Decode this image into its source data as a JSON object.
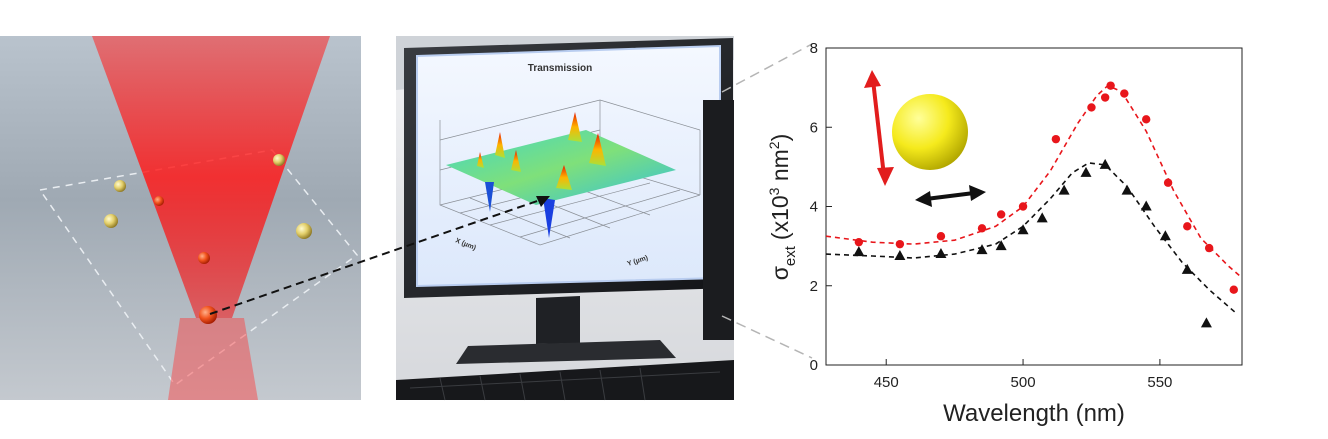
{
  "monitor": {
    "screen_title": "Transmission",
    "x_axis_label": "X (µm)",
    "y_axis_label": "Y (µm)"
  },
  "chart_data": {
    "type": "scatter",
    "title": "",
    "xlabel": "Wavelength (nm)",
    "ylabel": {
      "symbol": "σ",
      "subscript": "ext",
      "open": "(x10",
      "exp": "3",
      "unit": " nm",
      "unit_exp": "2",
      "close": ")"
    },
    "xlim": [
      428,
      580
    ],
    "ylim": [
      0,
      8
    ],
    "xticks": [
      "450",
      "500",
      "550"
    ],
    "yticks": [
      "0",
      "2",
      "4",
      "6",
      "8"
    ],
    "xtick_values": [
      450,
      500,
      550
    ],
    "ytick_values": [
      0,
      2,
      4,
      6,
      8
    ],
    "grid": false,
    "legend": "none",
    "series": [
      {
        "marker": "circle",
        "color": "#e8161b",
        "points": [
          [
            440,
            3.1
          ],
          [
            455,
            3.05
          ],
          [
            470,
            3.25
          ],
          [
            485,
            3.45
          ],
          [
            492,
            3.8
          ],
          [
            500,
            4.0
          ],
          [
            512,
            5.7
          ],
          [
            525,
            6.5
          ],
          [
            530,
            6.75
          ],
          [
            532,
            7.05
          ],
          [
            537,
            6.85
          ],
          [
            545,
            6.2
          ],
          [
            553,
            4.6
          ],
          [
            560,
            3.5
          ],
          [
            568,
            2.95
          ],
          [
            577,
            1.9
          ]
        ],
        "fit": [
          [
            428,
            3.25
          ],
          [
            445,
            3.1
          ],
          [
            460,
            3.05
          ],
          [
            475,
            3.15
          ],
          [
            490,
            3.5
          ],
          [
            500,
            4.0
          ],
          [
            510,
            4.9
          ],
          [
            520,
            6.1
          ],
          [
            527,
            6.8
          ],
          [
            531,
            7.05
          ],
          [
            536,
            6.9
          ],
          [
            545,
            5.9
          ],
          [
            555,
            4.4
          ],
          [
            565,
            3.2
          ],
          [
            575,
            2.5
          ],
          [
            580,
            2.2
          ]
        ]
      },
      {
        "marker": "triangle",
        "color": "#111111",
        "points": [
          [
            440,
            2.85
          ],
          [
            455,
            2.75
          ],
          [
            470,
            2.8
          ],
          [
            485,
            2.9
          ],
          [
            492,
            3.0
          ],
          [
            500,
            3.4
          ],
          [
            507,
            3.7
          ],
          [
            515,
            4.4
          ],
          [
            523,
            4.85
          ],
          [
            530,
            5.05
          ],
          [
            538,
            4.4
          ],
          [
            545,
            4.0
          ],
          [
            552,
            3.25
          ],
          [
            560,
            2.4
          ],
          [
            567,
            1.05
          ]
        ],
        "fit": [
          [
            428,
            2.8
          ],
          [
            445,
            2.75
          ],
          [
            460,
            2.7
          ],
          [
            475,
            2.8
          ],
          [
            490,
            3.05
          ],
          [
            500,
            3.5
          ],
          [
            510,
            4.2
          ],
          [
            518,
            4.85
          ],
          [
            524,
            5.1
          ],
          [
            530,
            5.05
          ],
          [
            538,
            4.5
          ],
          [
            548,
            3.5
          ],
          [
            558,
            2.6
          ],
          [
            568,
            1.9
          ],
          [
            578,
            1.3
          ]
        ]
      }
    ]
  }
}
